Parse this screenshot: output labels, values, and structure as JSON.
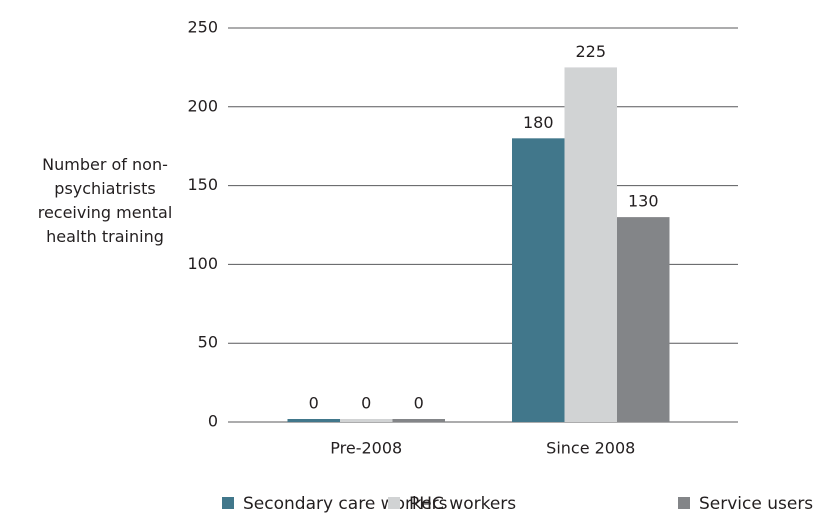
{
  "chart_data": {
    "type": "bar",
    "y_axis_label": "Number of non-psychiatrists receiving mental health training",
    "categories": [
      "Pre-2008",
      "Since 2008"
    ],
    "series": [
      {
        "name": "Secondary care workers",
        "color": "#41778b",
        "values": [
          0,
          180
        ]
      },
      {
        "name": "PHC workers",
        "color": "#d1d3d4",
        "values": [
          0,
          225
        ]
      },
      {
        "name": "Service users",
        "color": "#838588",
        "values": [
          0,
          130
        ]
      }
    ],
    "ylim": [
      0,
      250
    ],
    "yticks": [
      0,
      50,
      100,
      150,
      200,
      250
    ],
    "grid": true,
    "legend": "bottom"
  }
}
